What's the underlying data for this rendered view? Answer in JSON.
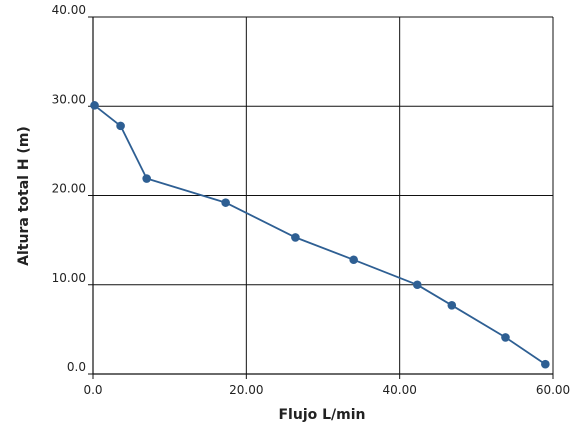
{
  "chart_data": {
    "type": "line",
    "title": "",
    "xlabel": "Flujo L/min",
    "ylabel": "Altura total H (m)",
    "xlim": [
      0,
      60
    ],
    "ylim": [
      0,
      40
    ],
    "x_ticks": [
      0,
      20,
      40,
      60
    ],
    "y_ticks": [
      0,
      10,
      20,
      30,
      40
    ],
    "x_tick_labels": [
      "0.0",
      "20.00",
      "40.00",
      "60.00"
    ],
    "y_tick_labels": [
      "0.0",
      "10.00",
      "20.00",
      "30.00",
      "40.00"
    ],
    "grid": true,
    "series": [
      {
        "color": "#2e5f93",
        "marker": "circle",
        "x": [
          0.2,
          3.6,
          7.0,
          17.3,
          26.4,
          34.0,
          42.3,
          46.8,
          53.8,
          59.0
        ],
        "y": [
          30.1,
          27.8,
          21.9,
          19.2,
          15.3,
          12.8,
          10.0,
          7.7,
          4.1,
          1.1
        ]
      }
    ]
  }
}
